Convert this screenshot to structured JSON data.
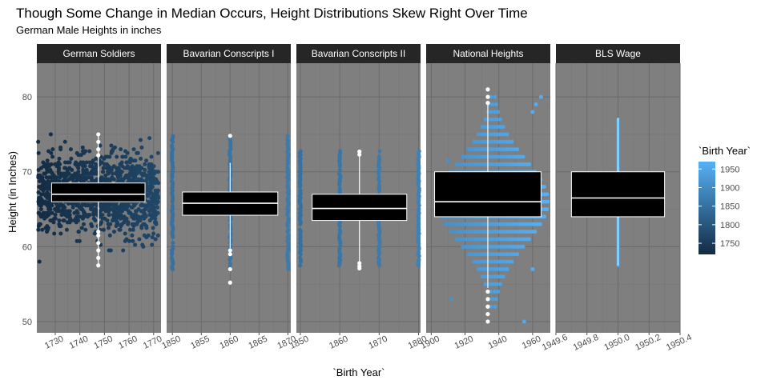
{
  "chart_data": {
    "type": "boxplot-faceted",
    "title": "Though Some Change in Median Occurs, Height Distributions Skew Right Over Time",
    "subtitle": "German Male Heights in inches",
    "xlabel": "`Birth Year`",
    "ylabel": "Height (in Inches)",
    "ylim": [
      48.5,
      84.5
    ],
    "y_ticks": [
      50,
      60,
      70,
      80
    ],
    "panel_background": "#7f7f7f",
    "strip_background": "#262626",
    "legend": {
      "title": "`Birth Year`",
      "position": "right",
      "low_color": "#132b43",
      "high_color": "#56b1f7",
      "range": [
        1720,
        1970
      ],
      "ticks": [
        1750,
        1800,
        1850,
        1900,
        1950
      ]
    },
    "facets": [
      {
        "name": "German Soldiers",
        "xlim": [
          1722.5,
          1773
        ],
        "x_ticks": [
          1730,
          1740,
          1750,
          1760,
          1770
        ],
        "box": {
          "x": 1747.5,
          "x_width": 38,
          "q1": 66.0,
          "median": 67.0,
          "q3": 68.5,
          "whisker_low": 57.5,
          "whisker_high": 74.8
        },
        "scatter": {
          "x_min": 1723,
          "x_max": 1772,
          "y_min": 57.5,
          "y_max": 75.0,
          "center": 67.0,
          "spread": 2.6,
          "style": "dense",
          "color_year": 1748
        },
        "outliers": [
          57.5,
          58.5,
          59.5,
          60.5,
          61.5,
          62.0,
          72.2,
          73.0,
          74.0,
          75.0
        ]
      },
      {
        "name": "Bavarian Conscripts I",
        "xlim": [
          1849,
          1870.5
        ],
        "x_ticks": [
          1850,
          1855,
          1860,
          1865,
          1870
        ],
        "box": {
          "x": 1860,
          "x_width": 16.5,
          "q1": 64.2,
          "median": 65.8,
          "q3": 67.3,
          "whisker_low": 59.8,
          "whisker_high": 71.2
        },
        "scatter": {
          "columns": [
            1850,
            1860,
            1870
          ],
          "y_min": 57.0,
          "y_max": 74.8,
          "style": "columns",
          "color_year": 1860
        },
        "outliers": [
          74.8,
          59.5,
          59.0,
          57.0,
          55.2
        ]
      },
      {
        "name": "Bavarian Conscripts II",
        "xlim": [
          1849,
          1880.5
        ],
        "x_ticks": [
          1850,
          1860,
          1870,
          1880
        ],
        "box": {
          "x": 1865,
          "x_width": 24,
          "q1": 63.5,
          "median": 65.1,
          "q3": 67.0,
          "whisker_low": 58.0,
          "whisker_high": 72.5
        },
        "scatter": {
          "columns": [
            1850,
            1860,
            1870,
            1880
          ],
          "y_min": 57.5,
          "y_max": 72.8,
          "style": "columns",
          "color_year": 1865
        },
        "outliers": [
          72.7,
          72.3,
          57.8,
          57.4,
          57.1
        ]
      },
      {
        "name": "National Heights",
        "xlim": [
          1897,
          1970.5
        ],
        "x_ticks": [
          1900,
          1920,
          1940,
          1960
        ],
        "box": {
          "x": 1933.5,
          "x_width": 63,
          "q1": 64.0,
          "median": 66.0,
          "q3": 70.0,
          "whisker_low": 54.5,
          "whisker_high": 79.0
        },
        "scatter": {
          "x_min": 1902,
          "x_max": 1967,
          "y_min": 52.0,
          "y_max": 80.0,
          "center": 66.0,
          "spread": 3.7,
          "style": "rows",
          "color_year": 1935
        },
        "outliers": [
          81.0,
          80.0,
          79.2,
          54.0,
          53.0,
          52.0,
          51.0,
          50.0
        ]
      },
      {
        "name": "BLS Wage",
        "xlim": [
          1949.6,
          1950.4
        ],
        "x_ticks": [
          1949.6,
          1949.8,
          1950.0,
          1950.2,
          1950.4
        ],
        "box": {
          "x": 1950.0,
          "x_width": 0.6,
          "q1": 64.0,
          "median": 66.5,
          "q3": 70.0,
          "whisker_low": 57.5,
          "whisker_high": 77.2
        },
        "scatter": {
          "x_min": 1950.0,
          "x_max": 1950.0,
          "y_min": 57.5,
          "y_max": 77.2,
          "style": "line",
          "color_year": 1960
        },
        "outliers": []
      }
    ]
  }
}
